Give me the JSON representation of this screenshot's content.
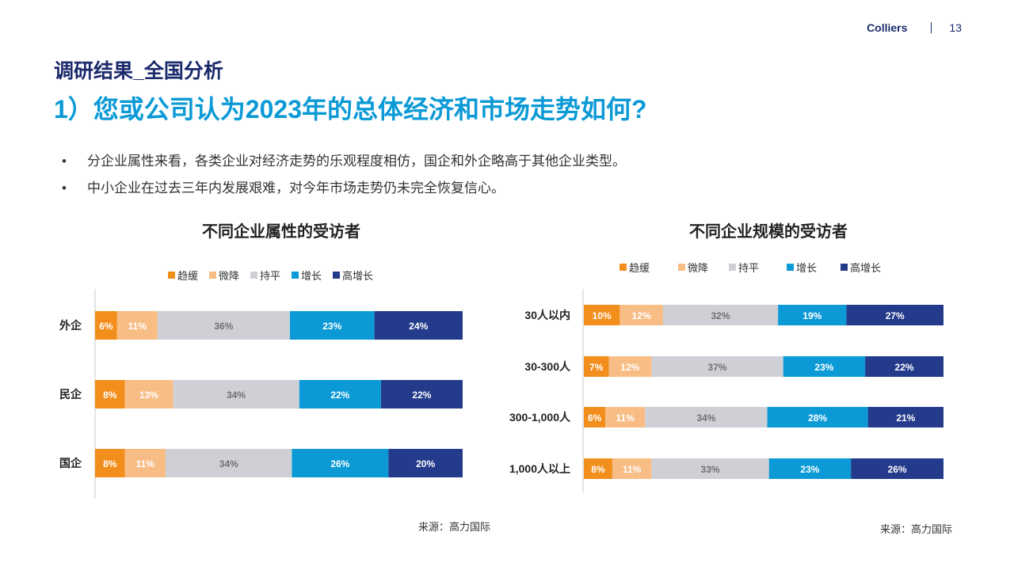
{
  "header": {
    "brand": "Colliers",
    "page_number": "13"
  },
  "section_title": "调研结果_全国分析",
  "main_title": "1）您或公司认为2023年的总体经济和市场走势如何?",
  "bullets": [
    "分企业属性来看，各类企业对经济走势的乐观程度相仿，国企和外企略高于其他企业类型。",
    "中小企业在过去三年内发展艰难，对今年市场走势仍未完全恢复信心。"
  ],
  "bullet_marker": "•",
  "colors": {
    "趋缓": "#f28e1c",
    "微降": "#f7bd85",
    "持平": "#cfd0d6",
    "增长": "#0b9ad6",
    "高增长": "#243b8c"
  },
  "chart_data": [
    {
      "type": "bar",
      "orientation": "horizontal-stacked",
      "title": "不同企业属性的受访者",
      "legend": [
        "趋缓",
        "微降",
        "持平",
        "增长",
        "高增长"
      ],
      "categories": [
        "外企",
        "民企",
        "国企"
      ],
      "series": [
        {
          "name": "趋缓",
          "values": [
            6,
            8,
            8
          ]
        },
        {
          "name": "微降",
          "values": [
            11,
            13,
            11
          ]
        },
        {
          "name": "持平",
          "values": [
            36,
            34,
            34
          ]
        },
        {
          "name": "增长",
          "values": [
            23,
            22,
            26
          ]
        },
        {
          "name": "高增长",
          "values": [
            24,
            22,
            20
          ]
        }
      ],
      "unit": "%",
      "source": "来源：高力国际"
    },
    {
      "type": "bar",
      "orientation": "horizontal-stacked",
      "title": "不同企业规模的受访者",
      "legend": [
        "趋缓",
        "微降",
        "持平",
        "增长",
        "高增长"
      ],
      "categories": [
        "30人以内",
        "30-300人",
        "300-1,000人",
        "1,000人以上"
      ],
      "series": [
        {
          "name": "趋缓",
          "values": [
            10,
            7,
            6,
            8
          ]
        },
        {
          "name": "微降",
          "values": [
            12,
            12,
            11,
            11
          ]
        },
        {
          "name": "持平",
          "values": [
            32,
            37,
            34,
            33
          ]
        },
        {
          "name": "增长",
          "values": [
            19,
            23,
            28,
            23
          ]
        },
        {
          "name": "高增长",
          "values": [
            27,
            22,
            21,
            26
          ]
        }
      ],
      "unit": "%",
      "source": "来源：高力国际"
    }
  ]
}
